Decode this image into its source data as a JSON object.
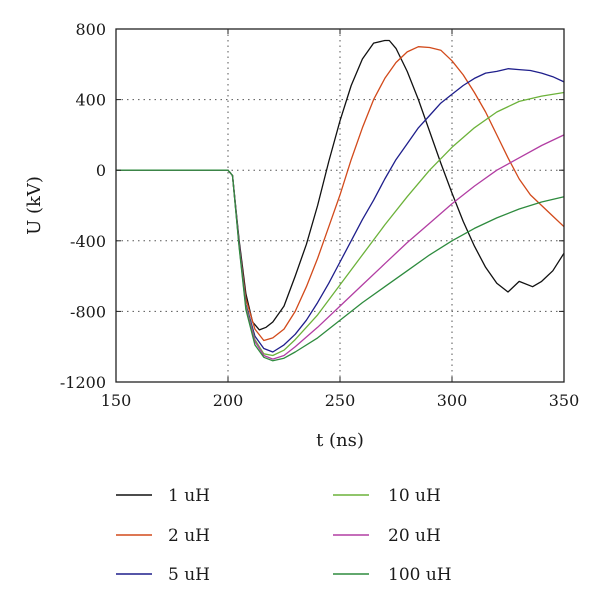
{
  "chart_data": {
    "type": "line",
    "xlabel": "t (ns)",
    "ylabel": "U (kV)",
    "xlim": [
      150,
      350
    ],
    "ylim": [
      -1200,
      800
    ],
    "xticks": [
      150,
      200,
      250,
      300,
      350
    ],
    "yticks": [
      -1200,
      -800,
      -400,
      0,
      400,
      800
    ],
    "grid": true,
    "legend_position": "bottom",
    "series": [
      {
        "name": "1 uH",
        "color": "#111111",
        "x": [
          150,
          200,
          202,
          205,
          208,
          211,
          214,
          217,
          220,
          225,
          230,
          235,
          240,
          245,
          250,
          255,
          260,
          265,
          270,
          272,
          275,
          280,
          285,
          290,
          295,
          300,
          305,
          310,
          315,
          320,
          325,
          330,
          336,
          340,
          345,
          350
        ],
        "y": [
          0,
          0,
          -30,
          -400,
          -700,
          -860,
          -905,
          -890,
          -860,
          -770,
          -600,
          -420,
          -200,
          50,
          280,
          480,
          630,
          720,
          735,
          735,
          690,
          560,
          400,
          220,
          40,
          -130,
          -290,
          -430,
          -550,
          -640,
          -690,
          -630,
          -660,
          -630,
          -570,
          -470
        ]
      },
      {
        "name": "2 uH",
        "color": "#d24a1b",
        "x": [
          150,
          200,
          202,
          205,
          208,
          212,
          216,
          220,
          225,
          230,
          235,
          240,
          245,
          250,
          255,
          260,
          265,
          270,
          275,
          280,
          285,
          290,
          295,
          300,
          305,
          310,
          315,
          320,
          325,
          330,
          335,
          340,
          345,
          350
        ],
        "y": [
          0,
          0,
          -30,
          -420,
          -730,
          -900,
          -965,
          -950,
          -900,
          -800,
          -660,
          -500,
          -320,
          -140,
          60,
          240,
          400,
          520,
          610,
          670,
          700,
          695,
          680,
          620,
          540,
          440,
          330,
          200,
          70,
          -50,
          -140,
          -200,
          -260,
          -320
        ]
      },
      {
        "name": "5 uH",
        "color": "#1f1f8c",
        "x": [
          150,
          200,
          202,
          205,
          208,
          212,
          216,
          220,
          225,
          230,
          235,
          240,
          245,
          250,
          255,
          260,
          265,
          270,
          275,
          280,
          285,
          290,
          295,
          300,
          305,
          310,
          315,
          320,
          325,
          330,
          335,
          340,
          345,
          350
        ],
        "y": [
          0,
          0,
          -30,
          -420,
          -760,
          -940,
          -1010,
          -1030,
          -990,
          -930,
          -850,
          -750,
          -640,
          -520,
          -400,
          -280,
          -170,
          -50,
          60,
          150,
          240,
          310,
          380,
          430,
          480,
          520,
          550,
          560,
          575,
          570,
          565,
          550,
          530,
          500
        ]
      },
      {
        "name": "10 uH",
        "color": "#6cb23a",
        "x": [
          150,
          200,
          202,
          205,
          208,
          212,
          216,
          220,
          225,
          230,
          240,
          250,
          260,
          270,
          280,
          290,
          300,
          310,
          320,
          330,
          340,
          350
        ],
        "y": [
          0,
          0,
          -30,
          -430,
          -770,
          -960,
          -1040,
          -1050,
          -1020,
          -960,
          -820,
          -650,
          -480,
          -310,
          -150,
          0,
          130,
          240,
          330,
          390,
          420,
          440
        ]
      },
      {
        "name": "20 uH",
        "color": "#b23ea3",
        "x": [
          150,
          200,
          202,
          205,
          208,
          212,
          216,
          220,
          225,
          230,
          240,
          250,
          260,
          270,
          280,
          290,
          300,
          310,
          320,
          330,
          340,
          350
        ],
        "y": [
          0,
          0,
          -30,
          -430,
          -780,
          -970,
          -1050,
          -1070,
          -1050,
          -1000,
          -890,
          -770,
          -650,
          -530,
          -410,
          -300,
          -190,
          -90,
          0,
          70,
          140,
          200
        ]
      },
      {
        "name": "100 uH",
        "color": "#2e8b3e",
        "x": [
          150,
          200,
          202,
          205,
          208,
          212,
          216,
          220,
          225,
          230,
          240,
          250,
          260,
          270,
          280,
          290,
          300,
          310,
          320,
          330,
          340,
          350
        ],
        "y": [
          0,
          0,
          -30,
          -440,
          -790,
          -990,
          -1060,
          -1080,
          -1065,
          -1030,
          -950,
          -850,
          -750,
          -660,
          -570,
          -480,
          -400,
          -330,
          -270,
          -220,
          -180,
          -150
        ]
      }
    ]
  }
}
